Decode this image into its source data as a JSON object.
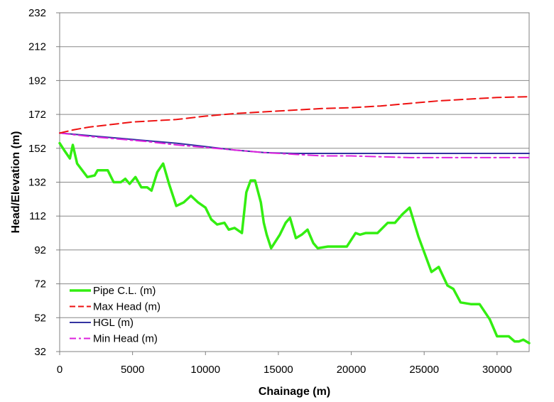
{
  "chart_data": {
    "type": "line",
    "title": "",
    "xlabel": "Chainage (m)",
    "ylabel": "Head/Elevation (m)",
    "xlim": [
      0,
      32200
    ],
    "ylim": [
      32,
      232
    ],
    "x_ticks": [
      0,
      5000,
      10000,
      15000,
      20000,
      25000,
      30000
    ],
    "y_ticks": [
      32,
      52,
      72,
      92,
      112,
      132,
      152,
      172,
      192,
      212,
      232
    ],
    "grid": "horizontal",
    "legend_placement": "bottom-left",
    "series": [
      {
        "name": "Pipe C.L. (m)",
        "color": "#33ee11",
        "style": "solid",
        "x": [
          0,
          300,
          700,
          900,
          1200,
          1900,
          2400,
          2600,
          3300,
          3700,
          4200,
          4500,
          4800,
          5200,
          5600,
          6000,
          6300,
          6700,
          7100,
          7500,
          8000,
          8500,
          9000,
          9500,
          10000,
          10400,
          10800,
          11300,
          11600,
          12000,
          12500,
          12800,
          13100,
          13400,
          13800,
          14000,
          14200,
          14500,
          15100,
          15500,
          15800,
          16200,
          16600,
          17000,
          17400,
          17700,
          18400,
          19000,
          19700,
          20300,
          20600,
          21000,
          21800,
          22500,
          23000,
          23500,
          24000,
          24600,
          25500,
          26000,
          26600,
          27000,
          27500,
          28200,
          28800,
          29500,
          30000,
          30400,
          30800,
          31200,
          31500,
          31800,
          32200
        ],
        "y": [
          155,
          151,
          146,
          154,
          143,
          135,
          136,
          139,
          139,
          132,
          132,
          134,
          131,
          135,
          129,
          129,
          127,
          138,
          143,
          131,
          118,
          120,
          124,
          120,
          117,
          110,
          107,
          108,
          104,
          105,
          102,
          126,
          133,
          133,
          120,
          108,
          101,
          93,
          101,
          108,
          111,
          99,
          101,
          104,
          96,
          93,
          94,
          94,
          94,
          102,
          101,
          102,
          102,
          108,
          108,
          113,
          117,
          100,
          79,
          82,
          71,
          69,
          61,
          60,
          60,
          51,
          41,
          41,
          41,
          38,
          38,
          39,
          37
        ]
      },
      {
        "name": "Max Head (m)",
        "color": "#ee1111",
        "style": "dashed",
        "x": [
          0,
          1000,
          2000,
          3000,
          4000,
          5000,
          6000,
          7000,
          8000,
          10000,
          12000,
          14000,
          16000,
          18000,
          20000,
          22000,
          24000,
          26000,
          28000,
          30000,
          32200
        ],
        "y": [
          161,
          163,
          164.5,
          165.5,
          166.5,
          167.5,
          168,
          168.5,
          169,
          171,
          172.5,
          173.5,
          174.5,
          175.5,
          176,
          177,
          178.5,
          180,
          181,
          182,
          182.5
        ]
      },
      {
        "name": "HGL (m)",
        "color": "#3333a0",
        "style": "solid",
        "x": [
          0,
          2000,
          4000,
          6000,
          8000,
          10000,
          12000,
          14000,
          16000,
          18000,
          20000,
          22000,
          24000,
          26000,
          28000,
          30000,
          32200
        ],
        "y": [
          161,
          159.5,
          158,
          156.5,
          155,
          153,
          151,
          149.5,
          149,
          149,
          149,
          149,
          149,
          149,
          149,
          149,
          149
        ]
      },
      {
        "name": "Min Head (m)",
        "color": "#dd22dd",
        "style": "dashdot",
        "x": [
          0,
          2000,
          4000,
          6000,
          8000,
          10000,
          12000,
          14000,
          16000,
          18000,
          20000,
          22000,
          24000,
          26000,
          28000,
          30000,
          32200
        ],
        "y": [
          161,
          159,
          157.5,
          156,
          154,
          152.5,
          151,
          149.5,
          148.5,
          147.5,
          147.5,
          147,
          146.5,
          146.5,
          146.5,
          146.5,
          146.5
        ]
      }
    ]
  }
}
